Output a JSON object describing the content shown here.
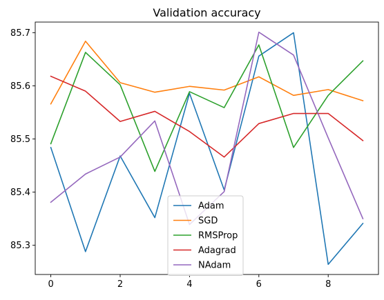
{
  "chart_data": {
    "type": "line",
    "title": "Validation accuracy",
    "xlabel": "",
    "ylabel": "",
    "xlim": [
      -0.45,
      9.45
    ],
    "ylim": [
      85.245,
      85.72
    ],
    "xticks": [
      0,
      2,
      4,
      6,
      8
    ],
    "yticks": [
      85.3,
      85.4,
      85.5,
      85.6,
      85.7
    ],
    "ytick_labels": [
      "85.3",
      "85.4",
      "85.5",
      "85.6",
      "85.7"
    ],
    "grid": false,
    "legend_position": "lower-center",
    "x": [
      0,
      1,
      2,
      3,
      4,
      5,
      6,
      7,
      8,
      9
    ],
    "series": [
      {
        "name": "Adam",
        "color": "#1f77b4",
        "values": [
          85.484,
          85.288,
          85.468,
          85.352,
          85.586,
          85.404,
          85.656,
          85.7,
          85.264,
          85.341
        ]
      },
      {
        "name": "SGD",
        "color": "#ff7f0e",
        "values": [
          85.566,
          85.684,
          85.606,
          85.588,
          85.599,
          85.592,
          85.617,
          85.582,
          85.593,
          85.572
        ]
      },
      {
        "name": "RMSProp",
        "color": "#2ca02c",
        "values": [
          85.491,
          85.663,
          85.602,
          85.439,
          85.589,
          85.559,
          85.677,
          85.484,
          85.582,
          85.647
        ]
      },
      {
        "name": "Adagrad",
        "color": "#d62728",
        "values": [
          85.618,
          85.59,
          85.533,
          85.552,
          85.514,
          85.466,
          85.529,
          85.548,
          85.548,
          85.497
        ]
      },
      {
        "name": "NAdam",
        "color": "#9467bd",
        "values": [
          85.381,
          85.434,
          85.466,
          85.534,
          85.339,
          85.401,
          85.701,
          85.658,
          85.502,
          85.35
        ]
      }
    ]
  }
}
